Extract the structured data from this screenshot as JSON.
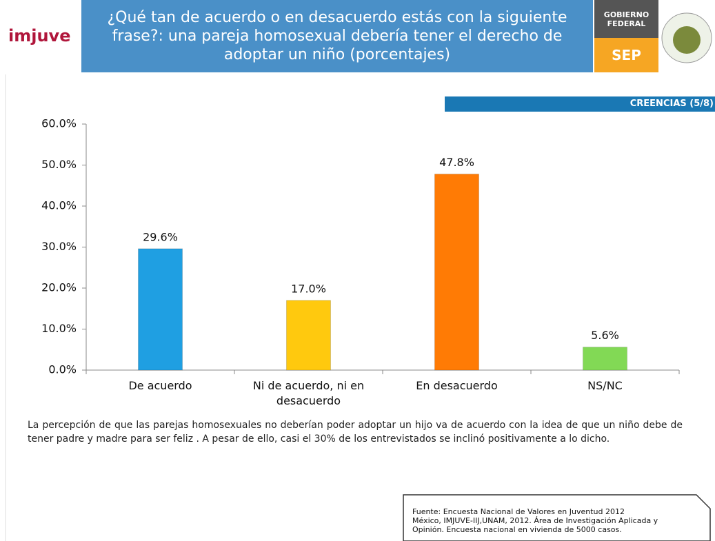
{
  "logo": "imjuve",
  "header": {
    "title": "¿Qué tan de acuerdo o en desacuerdo estás con la siguiente frase?: una pareja homosexual debería tener el derecho de adoptar un niño (porcentajes)",
    "gobierno": "GOBIERNO FEDERAL",
    "sep": "SEP"
  },
  "section": "CREENCIAS (5/8)",
  "chart_data": {
    "type": "bar",
    "categories": [
      "De acuerdo",
      "Ni de acuerdo, ni en desacuerdo",
      "En desacuerdo",
      "NS/NC"
    ],
    "values": [
      29.6,
      17.0,
      47.8,
      5.6
    ],
    "value_labels": [
      "29.6%",
      "17.0%",
      "47.8%",
      "5.6%"
    ],
    "colors": [
      "#1f9fe2",
      "#ffc90e",
      "#ff7b05",
      "#82d955"
    ],
    "ylim": [
      0,
      60
    ],
    "yticks": [
      {
        "value": 0,
        "label": "0.0%"
      },
      {
        "value": 10,
        "label": "10.0%"
      },
      {
        "value": 20,
        "label": "20.0%"
      },
      {
        "value": 30,
        "label": "30.0%"
      },
      {
        "value": 40,
        "label": "40.0%"
      },
      {
        "value": 50,
        "label": "50.0%"
      },
      {
        "value": 60,
        "label": "60.0%"
      }
    ],
    "grid": false
  },
  "note": "La percepción de que las parejas homosexuales no deberían poder adoptar un hijo va de acuerdo con la idea de que un niño debe de tener padre y madre para ser feliz . A pesar de ello, casi el 30% de los entrevistados se inclinó positivamente a lo dicho.",
  "source": [
    "Fuente: Encuesta Nacional de Valores en Juventud 2012",
    "México, IMJUVE-IIJ,UNAM, 2012. Área de Investigación Aplicada y",
    "Opinión. Encuesta nacional en vivienda de 5000 casos."
  ]
}
